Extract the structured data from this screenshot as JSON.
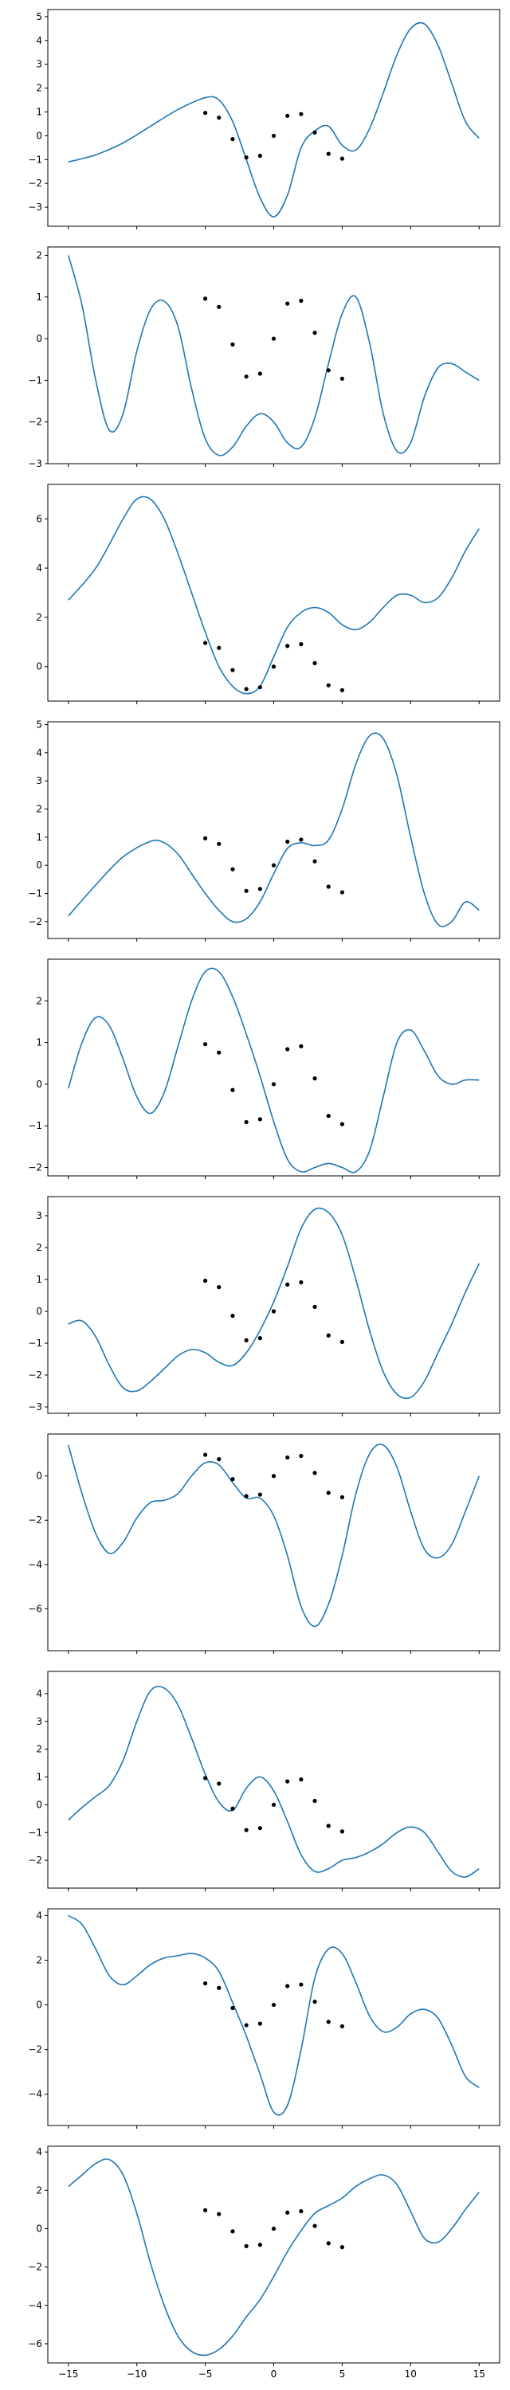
{
  "figure": {
    "background": "#ffffff",
    "line_color": "#1f77b4",
    "point_color": "#000000",
    "shared_x_axis": true
  },
  "chart_data": [
    {
      "type": "line",
      "title": "",
      "xlabel": "",
      "ylabel": "",
      "grid": false,
      "xlim": [
        -16.5,
        16.5
      ],
      "ylim": [
        -3.8,
        5.3
      ],
      "yticks": [
        -3,
        -2,
        -1,
        0,
        1,
        2,
        3,
        4,
        5
      ],
      "xticks": [
        -15,
        -10,
        -5,
        0,
        5,
        10,
        15
      ],
      "scatter": {
        "x": [
          -5,
          -4,
          -3,
          -2,
          -1,
          0,
          1,
          2,
          3,
          4,
          5
        ],
        "y": [
          0.96,
          0.76,
          -0.14,
          -0.91,
          -0.84,
          0.0,
          0.84,
          0.91,
          0.14,
          -0.76,
          -0.96
        ]
      },
      "series": [
        {
          "x": [
            -15,
            -13,
            -11,
            -9,
            -7,
            -5,
            -4,
            -3,
            -2,
            -1,
            0,
            1,
            2,
            3,
            4,
            5,
            6,
            7,
            8,
            9,
            10,
            11,
            12,
            13,
            14,
            15
          ],
          "y": [
            -1.1,
            -0.8,
            -0.3,
            0.4,
            1.1,
            1.6,
            1.5,
            0.6,
            -1.0,
            -2.6,
            -3.4,
            -2.5,
            -0.5,
            0.2,
            0.4,
            -0.4,
            -0.6,
            0.3,
            1.8,
            3.4,
            4.5,
            4.7,
            3.8,
            2.2,
            0.6,
            -0.1
          ]
        }
      ]
    },
    {
      "type": "line",
      "title": "",
      "xlabel": "",
      "ylabel": "",
      "grid": false,
      "xlim": [
        -16.5,
        16.5
      ],
      "ylim": [
        -3.0,
        2.2
      ],
      "yticks": [
        -3,
        -2,
        -1,
        0,
        1,
        2
      ],
      "xticks": [
        -15,
        -10,
        -5,
        0,
        5,
        10,
        15
      ],
      "scatter": {
        "x": [
          -5,
          -4,
          -3,
          -2,
          -1,
          0,
          1,
          2,
          3,
          4,
          5
        ],
        "y": [
          0.96,
          0.76,
          -0.14,
          -0.91,
          -0.84,
          0.0,
          0.84,
          0.91,
          0.14,
          -0.76,
          -0.96
        ]
      },
      "series": [
        {
          "x": [
            -15,
            -14,
            -13,
            -12,
            -11,
            -10,
            -9,
            -8,
            -7,
            -6,
            -5,
            -4,
            -3,
            -2,
            -1,
            0,
            1,
            2,
            3,
            4,
            5,
            6,
            7,
            8,
            9,
            10,
            11,
            12,
            13,
            14,
            15
          ],
          "y": [
            2.0,
            0.8,
            -1.0,
            -2.2,
            -1.8,
            -0.3,
            0.7,
            0.9,
            0.3,
            -1.2,
            -2.4,
            -2.8,
            -2.6,
            -2.1,
            -1.8,
            -2.0,
            -2.5,
            -2.6,
            -1.9,
            -0.6,
            0.6,
            1.0,
            -0.1,
            -1.8,
            -2.7,
            -2.5,
            -1.4,
            -0.7,
            -0.6,
            -0.8,
            -1.0
          ]
        }
      ]
    },
    {
      "type": "line",
      "title": "",
      "xlabel": "",
      "ylabel": "",
      "grid": false,
      "xlim": [
        -16.5,
        16.5
      ],
      "ylim": [
        -1.4,
        7.4
      ],
      "yticks": [
        0,
        2,
        4,
        6
      ],
      "xticks": [
        -15,
        -10,
        -5,
        0,
        5,
        10,
        15
      ],
      "scatter": {
        "x": [
          -5,
          -4,
          -3,
          -2,
          -1,
          0,
          1,
          2,
          3,
          4,
          5
        ],
        "y": [
          0.96,
          0.76,
          -0.14,
          -0.91,
          -0.84,
          0.0,
          0.84,
          0.91,
          0.14,
          -0.76,
          -0.96
        ]
      },
      "series": [
        {
          "x": [
            -15,
            -13,
            -11,
            -10,
            -9,
            -8,
            -7,
            -6,
            -5,
            -4,
            -3,
            -2,
            -1,
            0,
            1,
            2,
            3,
            4,
            5,
            6,
            7,
            8,
            9,
            10,
            11,
            12,
            13,
            14,
            15
          ],
          "y": [
            2.7,
            4.0,
            6.0,
            6.8,
            6.8,
            6.0,
            4.6,
            3.0,
            1.4,
            0.0,
            -0.8,
            -1.1,
            -0.8,
            0.4,
            1.6,
            2.2,
            2.4,
            2.2,
            1.7,
            1.5,
            1.8,
            2.4,
            2.9,
            2.9,
            2.6,
            2.8,
            3.6,
            4.7,
            5.6
          ]
        }
      ]
    },
    {
      "type": "line",
      "title": "",
      "xlabel": "",
      "ylabel": "",
      "grid": false,
      "xlim": [
        -16.5,
        16.5
      ],
      "ylim": [
        -2.6,
        5.1
      ],
      "yticks": [
        -2,
        -1,
        0,
        1,
        2,
        3,
        4,
        5
      ],
      "xticks": [
        -15,
        -10,
        -5,
        0,
        5,
        10,
        15
      ],
      "scatter": {
        "x": [
          -5,
          -4,
          -3,
          -2,
          -1,
          0,
          1,
          2,
          3,
          4,
          5
        ],
        "y": [
          0.96,
          0.76,
          -0.14,
          -0.91,
          -0.84,
          0.0,
          0.84,
          0.91,
          0.14,
          -0.76,
          -0.96
        ]
      },
      "series": [
        {
          "x": [
            -15,
            -13,
            -11,
            -9,
            -8,
            -7,
            -6,
            -5,
            -4,
            -3,
            -2,
            -1,
            0,
            1,
            2,
            3,
            4,
            5,
            6,
            7,
            8,
            9,
            10,
            11,
            12,
            13,
            14,
            15
          ],
          "y": [
            -1.8,
            -0.7,
            0.3,
            0.85,
            0.8,
            0.4,
            -0.3,
            -1.0,
            -1.6,
            -2.0,
            -1.9,
            -1.3,
            -0.3,
            0.6,
            0.8,
            0.7,
            0.9,
            2.0,
            3.6,
            4.6,
            4.5,
            3.2,
            1.0,
            -1.0,
            -2.1,
            -2.0,
            -1.3,
            -1.6
          ]
        }
      ]
    },
    {
      "type": "line",
      "title": "",
      "xlabel": "",
      "ylabel": "",
      "grid": false,
      "xlim": [
        -16.5,
        16.5
      ],
      "ylim": [
        -2.2,
        3.0
      ],
      "yticks": [
        -2,
        -1,
        0,
        1,
        2
      ],
      "xticks": [
        -15,
        -10,
        -5,
        0,
        5,
        10,
        15
      ],
      "scatter": {
        "x": [
          -5,
          -4,
          -3,
          -2,
          -1,
          0,
          1,
          2,
          3,
          4,
          5
        ],
        "y": [
          0.96,
          0.76,
          -0.14,
          -0.91,
          -0.84,
          0.0,
          0.84,
          0.91,
          0.14,
          -0.76,
          -0.96
        ]
      },
      "series": [
        {
          "x": [
            -15,
            -14,
            -13,
            -12,
            -11,
            -10,
            -9,
            -8,
            -7,
            -6,
            -5,
            -4,
            -3,
            -2,
            -1,
            0,
            1,
            2,
            3,
            4,
            5,
            6,
            7,
            8,
            9,
            10,
            11,
            12,
            13,
            14,
            15
          ],
          "y": [
            -0.1,
            1.0,
            1.6,
            1.4,
            0.6,
            -0.3,
            -0.7,
            -0.2,
            0.9,
            2.0,
            2.7,
            2.7,
            2.1,
            1.2,
            0.2,
            -0.9,
            -1.8,
            -2.1,
            -2.0,
            -1.9,
            -2.0,
            -2.1,
            -1.6,
            -0.3,
            1.0,
            1.3,
            0.8,
            0.2,
            0.0,
            0.1,
            0.1
          ]
        }
      ]
    },
    {
      "type": "line",
      "title": "",
      "xlabel": "",
      "ylabel": "",
      "grid": false,
      "xlim": [
        -16.5,
        16.5
      ],
      "ylim": [
        -3.2,
        3.6
      ],
      "yticks": [
        -3,
        -2,
        -1,
        0,
        1,
        2,
        3
      ],
      "xticks": [
        -15,
        -10,
        -5,
        0,
        5,
        10,
        15
      ],
      "scatter": {
        "x": [
          -5,
          -4,
          -3,
          -2,
          -1,
          0,
          1,
          2,
          3,
          4,
          5
        ],
        "y": [
          0.96,
          0.76,
          -0.14,
          -0.91,
          -0.84,
          0.0,
          0.84,
          0.91,
          0.14,
          -0.76,
          -0.96
        ]
      },
      "series": [
        {
          "x": [
            -15,
            -14,
            -13,
            -12,
            -11,
            -10,
            -9,
            -8,
            -7,
            -6,
            -5,
            -4,
            -3,
            -2,
            -1,
            0,
            1,
            2,
            3,
            4,
            5,
            6,
            7,
            8,
            9,
            10,
            11,
            12,
            13,
            14,
            15
          ],
          "y": [
            -0.4,
            -0.3,
            -0.8,
            -1.7,
            -2.4,
            -2.5,
            -2.2,
            -1.8,
            -1.4,
            -1.2,
            -1.3,
            -1.6,
            -1.7,
            -1.3,
            -0.6,
            0.3,
            1.4,
            2.6,
            3.2,
            3.1,
            2.4,
            1.0,
            -0.6,
            -1.9,
            -2.6,
            -2.7,
            -2.2,
            -1.3,
            -0.4,
            0.6,
            1.5
          ]
        }
      ]
    },
    {
      "type": "line",
      "title": "",
      "xlabel": "",
      "ylabel": "",
      "grid": false,
      "xlim": [
        -16.5,
        16.5
      ],
      "ylim": [
        -7.9,
        1.9
      ],
      "yticks": [
        -6,
        -4,
        -2,
        0
      ],
      "xticks": [
        -15,
        -10,
        -5,
        0,
        5,
        10,
        15
      ],
      "scatter": {
        "x": [
          -5,
          -4,
          -3,
          -2,
          -1,
          0,
          1,
          2,
          3,
          4,
          5
        ],
        "y": [
          0.96,
          0.76,
          -0.14,
          -0.91,
          -0.84,
          0.0,
          0.84,
          0.91,
          0.14,
          -0.76,
          -0.96
        ]
      },
      "series": [
        {
          "x": [
            -15,
            -14,
            -13,
            -12,
            -11,
            -10,
            -9,
            -8,
            -7,
            -6,
            -5,
            -4,
            -3,
            -2,
            -1,
            0,
            1,
            2,
            3,
            4,
            5,
            6,
            7,
            8,
            9,
            10,
            11,
            12,
            13,
            14,
            15
          ],
          "y": [
            1.4,
            -0.8,
            -2.6,
            -3.5,
            -3.0,
            -1.9,
            -1.2,
            -1.1,
            -0.8,
            0.0,
            0.6,
            0.5,
            -0.3,
            -1.0,
            -1.0,
            -1.8,
            -3.6,
            -5.9,
            -6.8,
            -5.8,
            -3.6,
            -0.8,
            1.0,
            1.4,
            0.4,
            -1.6,
            -3.3,
            -3.7,
            -3.1,
            -1.6,
            0.0
          ]
        }
      ]
    },
    {
      "type": "line",
      "title": "",
      "xlabel": "",
      "ylabel": "",
      "grid": false,
      "xlim": [
        -16.5,
        16.5
      ],
      "ylim": [
        -3.0,
        4.8
      ],
      "yticks": [
        -2,
        -1,
        0,
        1,
        2,
        3,
        4
      ],
      "xticks": [
        -15,
        -10,
        -5,
        0,
        5,
        10,
        15
      ],
      "scatter": {
        "x": [
          -5,
          -4,
          -3,
          -2,
          -1,
          0,
          1,
          2,
          3,
          4,
          5
        ],
        "y": [
          0.96,
          0.76,
          -0.14,
          -0.91,
          -0.84,
          0.0,
          0.84,
          0.91,
          0.14,
          -0.76,
          -0.96
        ]
      },
      "series": [
        {
          "x": [
            -15,
            -14,
            -13,
            -12,
            -11,
            -10,
            -9,
            -8,
            -7,
            -6,
            -5,
            -4,
            -3,
            -2,
            -1,
            0,
            1,
            2,
            3,
            4,
            5,
            6,
            7,
            8,
            9,
            10,
            11,
            12,
            13,
            14,
            15
          ],
          "y": [
            -0.55,
            -0.1,
            0.3,
            0.7,
            1.6,
            3.0,
            4.1,
            4.2,
            3.6,
            2.4,
            1.1,
            0.1,
            -0.2,
            0.6,
            1.0,
            0.5,
            -0.6,
            -1.8,
            -2.4,
            -2.3,
            -2.0,
            -1.9,
            -1.7,
            -1.4,
            -1.0,
            -0.8,
            -1.0,
            -1.7,
            -2.4,
            -2.6,
            -2.3
          ]
        }
      ]
    },
    {
      "type": "line",
      "title": "",
      "xlabel": "",
      "ylabel": "",
      "grid": false,
      "xlim": [
        -16.5,
        16.5
      ],
      "ylim": [
        -5.4,
        4.3
      ],
      "yticks": [
        -4,
        -2,
        0,
        2,
        4
      ],
      "xticks": [
        -15,
        -10,
        -5,
        0,
        5,
        10,
        15
      ],
      "scatter": {
        "x": [
          -5,
          -4,
          -3,
          -2,
          -1,
          0,
          1,
          2,
          3,
          4,
          5
        ],
        "y": [
          0.96,
          0.76,
          -0.14,
          -0.91,
          -0.84,
          0.0,
          0.84,
          0.91,
          0.14,
          -0.76,
          -0.96
        ]
      },
      "series": [
        {
          "x": [
            -15,
            -14,
            -13,
            -12,
            -11,
            -10,
            -9,
            -8,
            -7,
            -6,
            -5,
            -4,
            -3,
            -2,
            -1,
            0,
            1,
            2,
            3,
            4,
            5,
            6,
            7,
            8,
            9,
            10,
            11,
            12,
            13,
            14,
            15
          ],
          "y": [
            4.0,
            3.6,
            2.5,
            1.3,
            0.9,
            1.3,
            1.8,
            2.1,
            2.2,
            2.3,
            2.1,
            1.5,
            0.1,
            -1.4,
            -3.1,
            -4.8,
            -4.5,
            -2.0,
            1.2,
            2.5,
            2.3,
            1.0,
            -0.5,
            -1.2,
            -1.0,
            -0.4,
            -0.2,
            -0.6,
            -1.8,
            -3.2,
            -3.7
          ]
        }
      ]
    },
    {
      "type": "line",
      "title": "",
      "xlabel": "",
      "ylabel": "",
      "grid": false,
      "xlim": [
        -16.5,
        16.5
      ],
      "ylim": [
        -7.0,
        4.3
      ],
      "yticks": [
        -6,
        -4,
        -2,
        0,
        2,
        4
      ],
      "xticks": [
        -15,
        -10,
        -5,
        0,
        5,
        10,
        15
      ],
      "xticklabels": [
        "−15",
        "−10",
        "−5",
        "0",
        "5",
        "10",
        "15"
      ],
      "scatter": {
        "x": [
          -5,
          -4,
          -3,
          -2,
          -1,
          0,
          1,
          2,
          3,
          4,
          5
        ],
        "y": [
          0.96,
          0.76,
          -0.14,
          -0.91,
          -0.84,
          0.0,
          0.84,
          0.91,
          0.14,
          -0.76,
          -0.96
        ]
      },
      "series": [
        {
          "x": [
            -15,
            -14,
            -13,
            -12,
            -11,
            -10,
            -9,
            -8,
            -7,
            -6,
            -5,
            -4,
            -3,
            -2,
            -1,
            0,
            1,
            2,
            3,
            4,
            5,
            6,
            7,
            8,
            9,
            10,
            11,
            12,
            13,
            14,
            15
          ],
          "y": [
            2.2,
            2.8,
            3.4,
            3.6,
            2.8,
            0.8,
            -1.8,
            -4.0,
            -5.6,
            -6.4,
            -6.6,
            -6.3,
            -5.6,
            -4.6,
            -3.7,
            -2.5,
            -1.2,
            -0.1,
            0.8,
            1.2,
            1.6,
            2.2,
            2.6,
            2.8,
            2.3,
            0.9,
            -0.5,
            -0.7,
            0.0,
            1.0,
            1.9
          ]
        }
      ]
    }
  ]
}
